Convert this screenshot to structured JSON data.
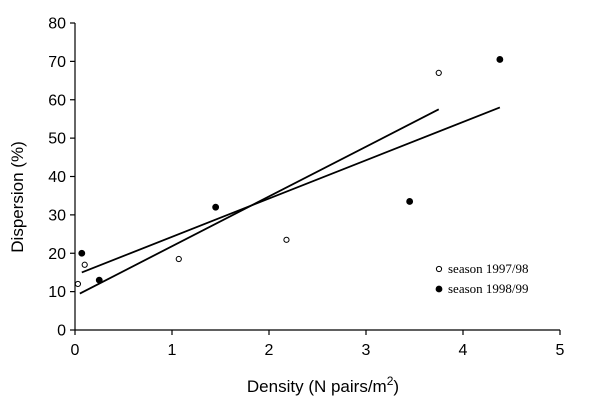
{
  "chart_data": {
    "type": "scatter",
    "title": "",
    "xlabel": "Density (N pairs/m",
    "xlabel_superscript": "2",
    "xlabel_suffix": ")",
    "ylabel": "Dispersion (%)",
    "xlim": [
      0,
      5
    ],
    "ylim": [
      0,
      80
    ],
    "x_ticks": [
      0,
      1,
      2,
      3,
      4,
      5
    ],
    "y_ticks": [
      0,
      10,
      20,
      30,
      40,
      50,
      60,
      70,
      80
    ],
    "grid": false,
    "legend_position": "bottom-right",
    "series": [
      {
        "name": "season 1997/98",
        "marker": "open-circle",
        "color": "#000000",
        "points": [
          {
            "x": 0.03,
            "y": 12
          },
          {
            "x": 0.1,
            "y": 17
          },
          {
            "x": 1.07,
            "y": 18.5
          },
          {
            "x": 2.18,
            "y": 23.5
          },
          {
            "x": 3.75,
            "y": 67
          }
        ],
        "trendline": {
          "x": [
            0.05,
            3.75
          ],
          "y": [
            9.5,
            57.5
          ]
        }
      },
      {
        "name": "season 1998/99",
        "marker": "filled-circle",
        "color": "#000000",
        "points": [
          {
            "x": 0.07,
            "y": 20
          },
          {
            "x": 0.25,
            "y": 13
          },
          {
            "x": 1.45,
            "y": 32
          },
          {
            "x": 3.45,
            "y": 33.5
          },
          {
            "x": 4.38,
            "y": 70.5
          }
        ],
        "trendline": {
          "x": [
            0.07,
            4.38
          ],
          "y": [
            15,
            58
          ]
        }
      }
    ]
  }
}
